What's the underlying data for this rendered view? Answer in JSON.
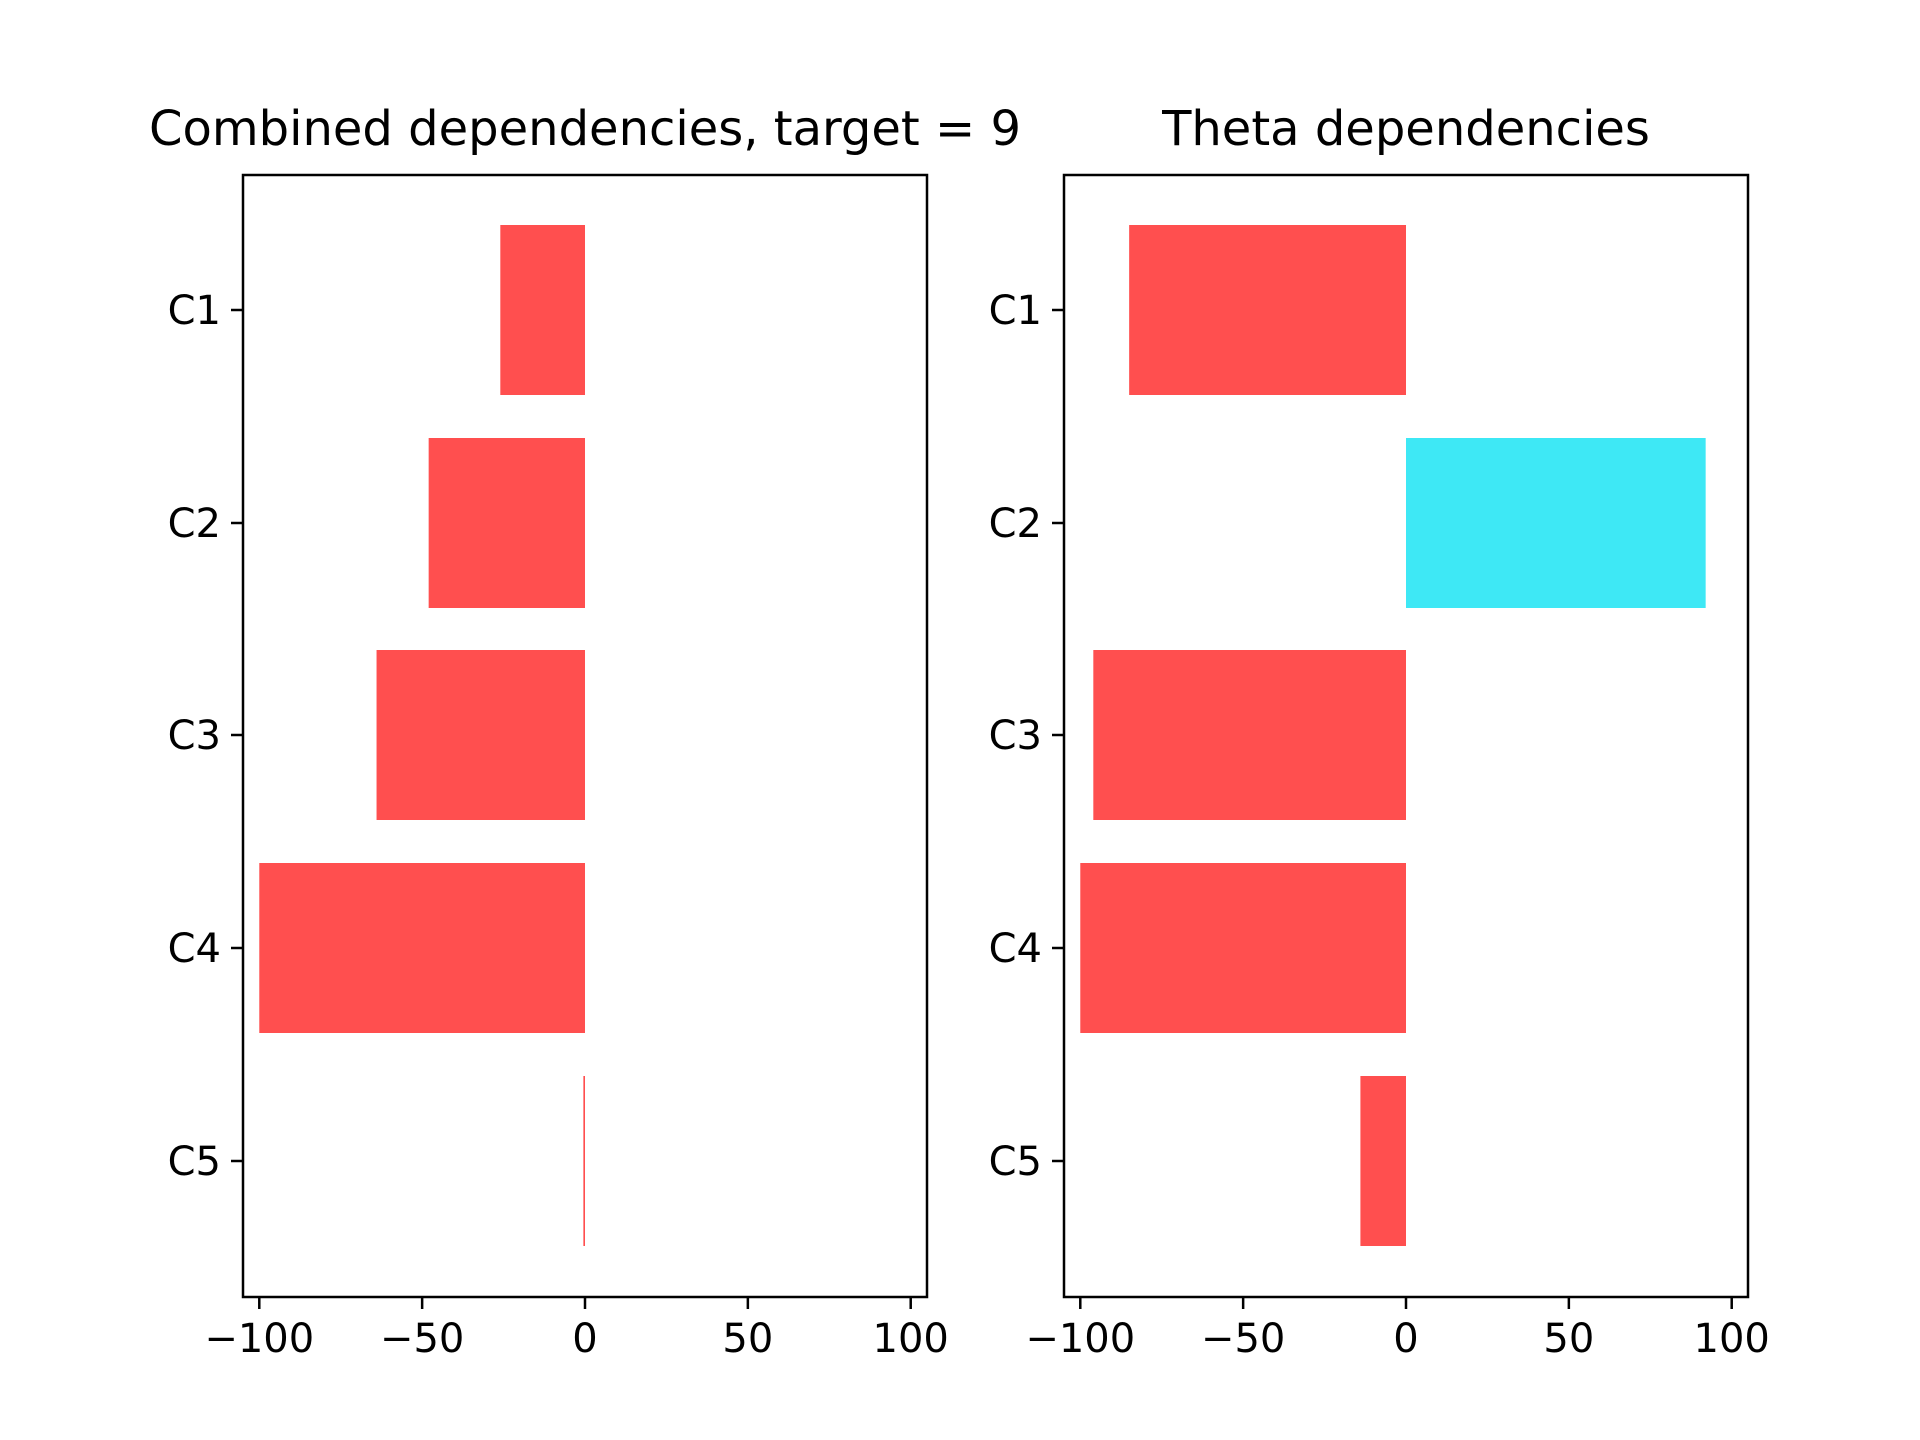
{
  "chart_data": [
    {
      "type": "bar",
      "orientation": "horizontal",
      "title": "Combined dependencies, target = 9",
      "xlabel": "",
      "ylabel": "",
      "categories": [
        "C1",
        "C2",
        "C3",
        "C4",
        "C5"
      ],
      "values": [
        -26,
        -48,
        -64,
        -100,
        -0.5
      ],
      "colors": [
        "#ff4f4f",
        "#ff4f4f",
        "#ff4f4f",
        "#ff4f4f",
        "#ff4f4f"
      ],
      "xlim": [
        -105,
        105
      ],
      "xticks": [
        -100,
        -50,
        0,
        50,
        100
      ],
      "xtick_labels": [
        "−100",
        "−50",
        "0",
        "50",
        "100"
      ],
      "grid": false
    },
    {
      "type": "bar",
      "orientation": "horizontal",
      "title": "Theta dependencies",
      "xlabel": "",
      "ylabel": "",
      "categories": [
        "C1",
        "C2",
        "C3",
        "C4",
        "C5"
      ],
      "values": [
        -85,
        92,
        -96,
        -100,
        -14
      ],
      "colors": [
        "#ff4f4f",
        "#3ee8f5",
        "#ff4f4f",
        "#ff4f4f",
        "#ff4f4f"
      ],
      "xlim": [
        -105,
        105
      ],
      "xticks": [
        -100,
        -50,
        0,
        50,
        100
      ],
      "xtick_labels": [
        "−100",
        "−50",
        "0",
        "50",
        "100"
      ],
      "grid": false
    }
  ]
}
